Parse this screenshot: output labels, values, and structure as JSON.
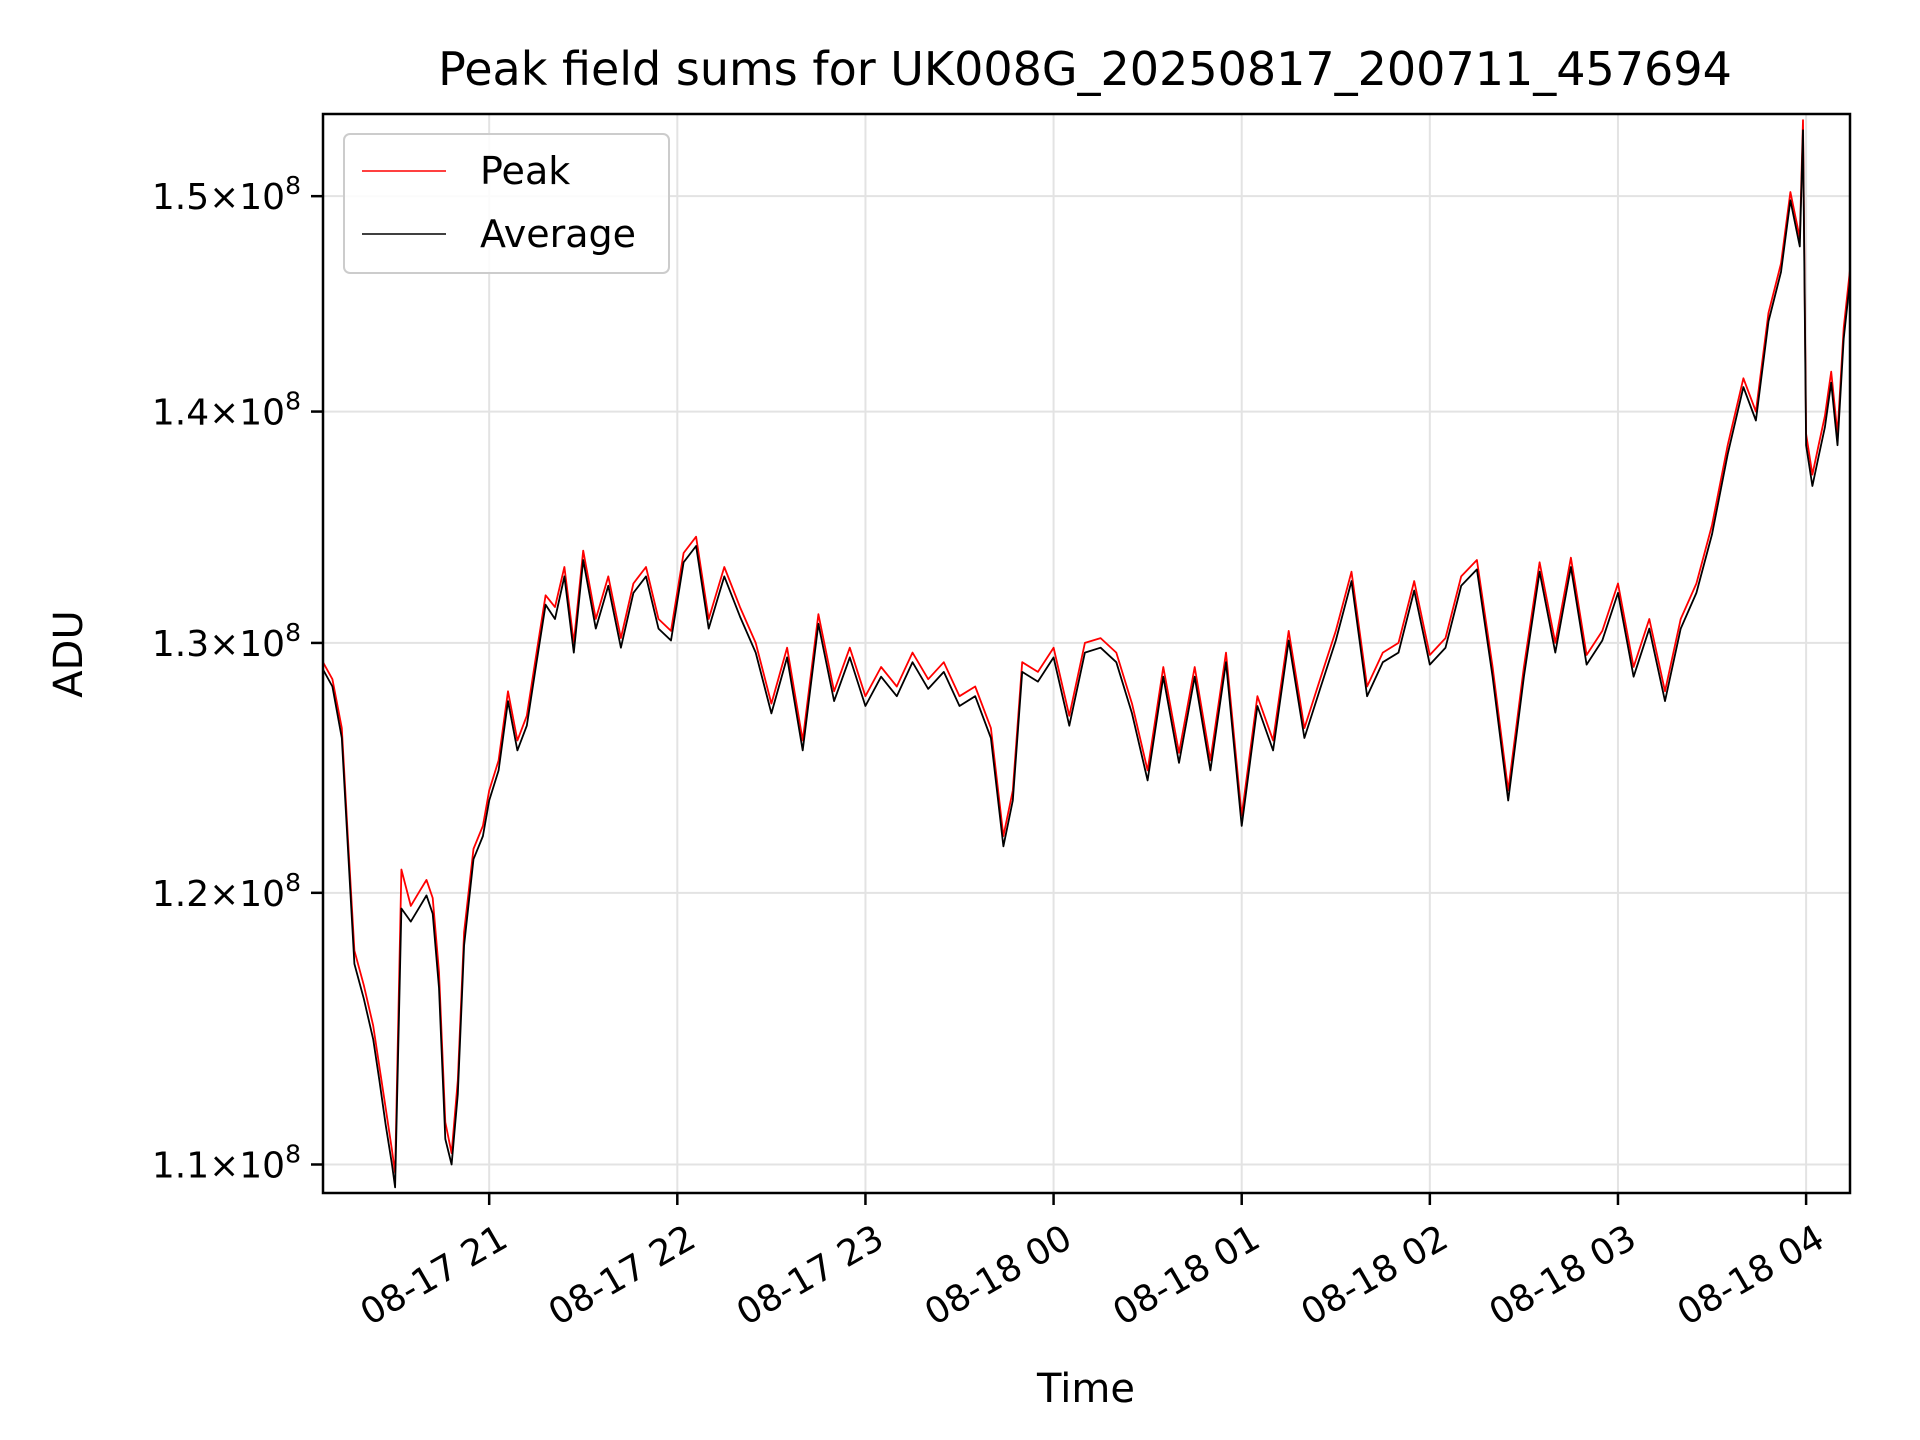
{
  "chart_data": {
    "type": "line",
    "title": "Peak field sums for UK008G_20250817_200711_457694",
    "xlabel": "Time",
    "ylabel": "ADU",
    "x_unit": "date-time (MM-DD HH)",
    "xlim": [
      "2025-08-17 20:07",
      "2025-08-18 04:14"
    ],
    "ylim": [
      109000000,
      154000000
    ],
    "y_scale": "log",
    "grid": true,
    "legend": "upper left",
    "x_ticks": [
      {
        "t": "2025-08-17 21:00",
        "label": "08-17 21"
      },
      {
        "t": "2025-08-17 22:00",
        "label": "08-17 22"
      },
      {
        "t": "2025-08-17 23:00",
        "label": "08-17 23"
      },
      {
        "t": "2025-08-18 00:00",
        "label": "08-18 00"
      },
      {
        "t": "2025-08-18 01:00",
        "label": "08-18 01"
      },
      {
        "t": "2025-08-18 02:00",
        "label": "08-18 02"
      },
      {
        "t": "2025-08-18 03:00",
        "label": "08-18 03"
      },
      {
        "t": "2025-08-18 04:00",
        "label": "08-18 04"
      }
    ],
    "y_ticks": [
      {
        "value": 110000000,
        "mant": "1.1",
        "exp": "8"
      },
      {
        "value": 120000000,
        "mant": "1.2",
        "exp": "8"
      },
      {
        "value": 130000000,
        "mant": "1.3",
        "exp": "8"
      },
      {
        "value": 140000000,
        "mant": "1.4",
        "exp": "8"
      },
      {
        "value": 150000000,
        "mant": "1.5",
        "exp": "8"
      }
    ],
    "x": [
      "2025-08-17 20:07",
      "2025-08-17 20:10",
      "2025-08-17 20:13",
      "2025-08-17 20:15",
      "2025-08-17 20:17",
      "2025-08-17 20:20",
      "2025-08-17 20:23",
      "2025-08-17 20:25",
      "2025-08-17 20:27",
      "2025-08-17 20:29",
      "2025-08-17 20:30",
      "2025-08-17 20:32",
      "2025-08-17 20:35",
      "2025-08-17 20:38",
      "2025-08-17 20:40",
      "2025-08-17 20:42",
      "2025-08-17 20:44",
      "2025-08-17 20:46",
      "2025-08-17 20:48",
      "2025-08-17 20:50",
      "2025-08-17 20:52",
      "2025-08-17 20:55",
      "2025-08-17 20:58",
      "2025-08-17 21:00",
      "2025-08-17 21:03",
      "2025-08-17 21:06",
      "2025-08-17 21:09",
      "2025-08-17 21:12",
      "2025-08-17 21:15",
      "2025-08-17 21:18",
      "2025-08-17 21:21",
      "2025-08-17 21:24",
      "2025-08-17 21:27",
      "2025-08-17 21:30",
      "2025-08-17 21:34",
      "2025-08-17 21:38",
      "2025-08-17 21:42",
      "2025-08-17 21:46",
      "2025-08-17 21:50",
      "2025-08-17 21:54",
      "2025-08-17 21:58",
      "2025-08-17 22:02",
      "2025-08-17 22:06",
      "2025-08-17 22:10",
      "2025-08-17 22:15",
      "2025-08-17 22:20",
      "2025-08-17 22:25",
      "2025-08-17 22:30",
      "2025-08-17 22:35",
      "2025-08-17 22:40",
      "2025-08-17 22:45",
      "2025-08-17 22:50",
      "2025-08-17 22:55",
      "2025-08-17 23:00",
      "2025-08-17 23:05",
      "2025-08-17 23:10",
      "2025-08-17 23:15",
      "2025-08-17 23:20",
      "2025-08-17 23:25",
      "2025-08-17 23:30",
      "2025-08-17 23:35",
      "2025-08-17 23:40",
      "2025-08-17 23:44",
      "2025-08-17 23:47",
      "2025-08-17 23:50",
      "2025-08-17 23:55",
      "2025-08-18 00:00",
      "2025-08-18 00:05",
      "2025-08-18 00:10",
      "2025-08-18 00:15",
      "2025-08-18 00:20",
      "2025-08-18 00:25",
      "2025-08-18 00:30",
      "2025-08-18 00:35",
      "2025-08-18 00:40",
      "2025-08-18 00:45",
      "2025-08-18 00:50",
      "2025-08-18 00:55",
      "2025-08-18 01:00",
      "2025-08-18 01:05",
      "2025-08-18 01:10",
      "2025-08-18 01:15",
      "2025-08-18 01:20",
      "2025-08-18 01:25",
      "2025-08-18 01:30",
      "2025-08-18 01:35",
      "2025-08-18 01:40",
      "2025-08-18 01:45",
      "2025-08-18 01:50",
      "2025-08-18 01:55",
      "2025-08-18 02:00",
      "2025-08-18 02:05",
      "2025-08-18 02:10",
      "2025-08-18 02:15",
      "2025-08-18 02:20",
      "2025-08-18 02:25",
      "2025-08-18 02:30",
      "2025-08-18 02:35",
      "2025-08-18 02:40",
      "2025-08-18 02:45",
      "2025-08-18 02:50",
      "2025-08-18 02:55",
      "2025-08-18 03:00",
      "2025-08-18 03:05",
      "2025-08-18 03:10",
      "2025-08-18 03:15",
      "2025-08-18 03:20",
      "2025-08-18 03:25",
      "2025-08-18 03:30",
      "2025-08-18 03:35",
      "2025-08-18 03:40",
      "2025-08-18 03:44",
      "2025-08-18 03:48",
      "2025-08-18 03:52",
      "2025-08-18 03:55",
      "2025-08-18 03:58",
      "2025-08-18 03:59",
      "2025-08-18 04:00",
      "2025-08-18 04:02",
      "2025-08-18 04:04",
      "2025-08-18 04:06",
      "2025-08-18 04:08",
      "2025-08-18 04:10",
      "2025-08-18 04:12",
      "2025-08-18 04:14"
    ],
    "series": [
      {
        "name": "Peak",
        "color": "#ff0000",
        "values": [
          129200000,
          128500000,
          126500000,
          122000000,
          117800000,
          116500000,
          115000000,
          113500000,
          112000000,
          110500000,
          109700000,
          120900000,
          119500000,
          120100000,
          120500000,
          119800000,
          117000000,
          111500000,
          110400000,
          113000000,
          118500000,
          121700000,
          122600000,
          124000000,
          125200000,
          128000000,
          126000000,
          127000000,
          129500000,
          132000000,
          131500000,
          133200000,
          130000000,
          133900000,
          131000000,
          132800000,
          130200000,
          132500000,
          133200000,
          131000000,
          130500000,
          133800000,
          134500000,
          131000000,
          133200000,
          131500000,
          130000000,
          127500000,
          129800000,
          126000000,
          131200000,
          128000000,
          129800000,
          127800000,
          129000000,
          128200000,
          129600000,
          128500000,
          129200000,
          127800000,
          128200000,
          126500000,
          122200000,
          124000000,
          129200000,
          128800000,
          129800000,
          127000000,
          130000000,
          130200000,
          129600000,
          127500000,
          124800000,
          129000000,
          125500000,
          129000000,
          125200000,
          129600000,
          123000000,
          127800000,
          126000000,
          130500000,
          126500000,
          128500000,
          130500000,
          133000000,
          128200000,
          129600000,
          130000000,
          132600000,
          129500000,
          130200000,
          132800000,
          133500000,
          129000000,
          124000000,
          129000000,
          133400000,
          130000000,
          133600000,
          129500000,
          130500000,
          132500000,
          129000000,
          131000000,
          128000000,
          131000000,
          132500000,
          135000000,
          138500000,
          141500000,
          140000000,
          144500000,
          146800000,
          150200000,
          148000000,
          153700000,
          139000000,
          137200000,
          138500000,
          139800000,
          141800000,
          139000000,
          143800000,
          146500000
        ]
      },
      {
        "name": "Average",
        "color": "#000000",
        "values": [
          128900000,
          128200000,
          126100000,
          121600000,
          117300000,
          116000000,
          114500000,
          113000000,
          111400000,
          110000000,
          109200000,
          119400000,
          118900000,
          119500000,
          119900000,
          119200000,
          116400000,
          110900000,
          110000000,
          112500000,
          118000000,
          121300000,
          122200000,
          123600000,
          124800000,
          127600000,
          125600000,
          126600000,
          129100000,
          131600000,
          131000000,
          132800000,
          129600000,
          133500000,
          130600000,
          132400000,
          129800000,
          132100000,
          132800000,
          130600000,
          130100000,
          133400000,
          134100000,
          130600000,
          132800000,
          131100000,
          129600000,
          127100000,
          129400000,
          125600000,
          130800000,
          127600000,
          129400000,
          127400000,
          128600000,
          127800000,
          129200000,
          128100000,
          128800000,
          127400000,
          127800000,
          126100000,
          121800000,
          123600000,
          128800000,
          128400000,
          129400000,
          126600000,
          129600000,
          129800000,
          129200000,
          127100000,
          124400000,
          128600000,
          125100000,
          128600000,
          124800000,
          129200000,
          122600000,
          127400000,
          125600000,
          130100000,
          126100000,
          128100000,
          130100000,
          132600000,
          127800000,
          129200000,
          129600000,
          132200000,
          129100000,
          129800000,
          132400000,
          133100000,
          128600000,
          123600000,
          128600000,
          133000000,
          129600000,
          133200000,
          129100000,
          130100000,
          132100000,
          128600000,
          130600000,
          127600000,
          130600000,
          132100000,
          134600000,
          138100000,
          141100000,
          139600000,
          144100000,
          146400000,
          149800000,
          147600000,
          153200000,
          138500000,
          136700000,
          138000000,
          139300000,
          141300000,
          138500000,
          143300000,
          146000000
        ]
      }
    ]
  }
}
